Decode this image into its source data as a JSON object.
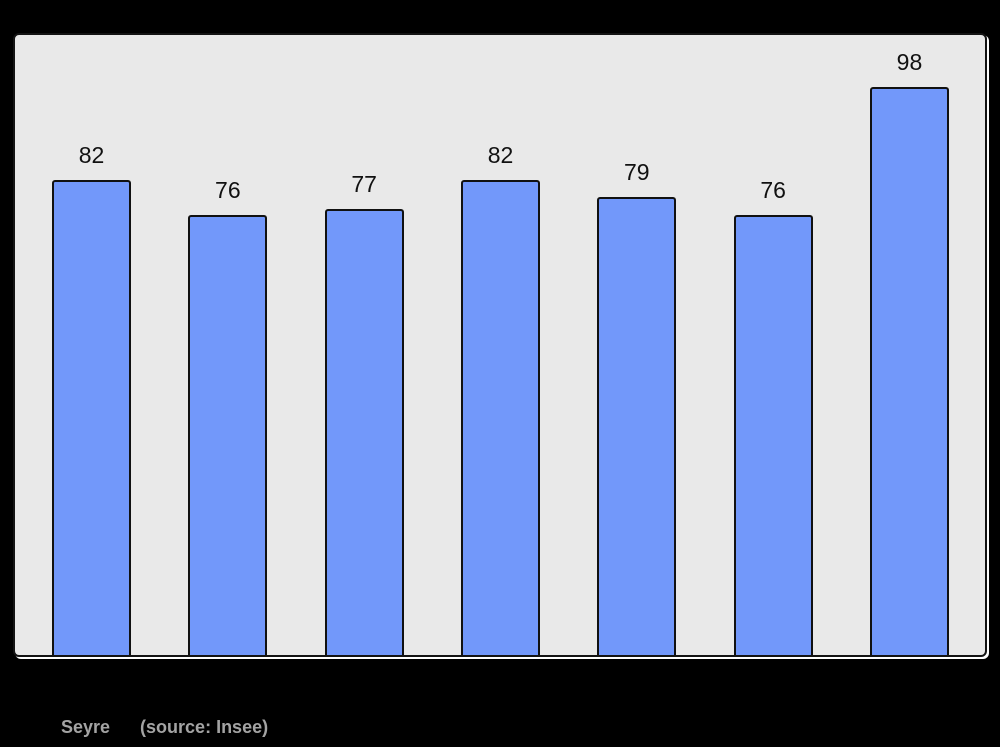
{
  "chart_data": {
    "type": "bar",
    "values": [
      82,
      76,
      77,
      82,
      79,
      76,
      98
    ],
    "title": "",
    "xlabel": "",
    "ylabel": "",
    "ylim": [
      0,
      107
    ],
    "grid": false,
    "legend": false,
    "bar_color": "#7298fa",
    "bar_border_color": "#111111",
    "value_labels_shown": true
  },
  "caption": {
    "commune": "Seyre",
    "source": "(source: Insee)"
  },
  "colors": {
    "page_background": "#000000",
    "plot_background": "#e9e9e9",
    "frame_border": "#141414",
    "frame_highlight": "#ffffff",
    "value_label_color": "#111111",
    "caption_color": "#a3a3a3"
  }
}
